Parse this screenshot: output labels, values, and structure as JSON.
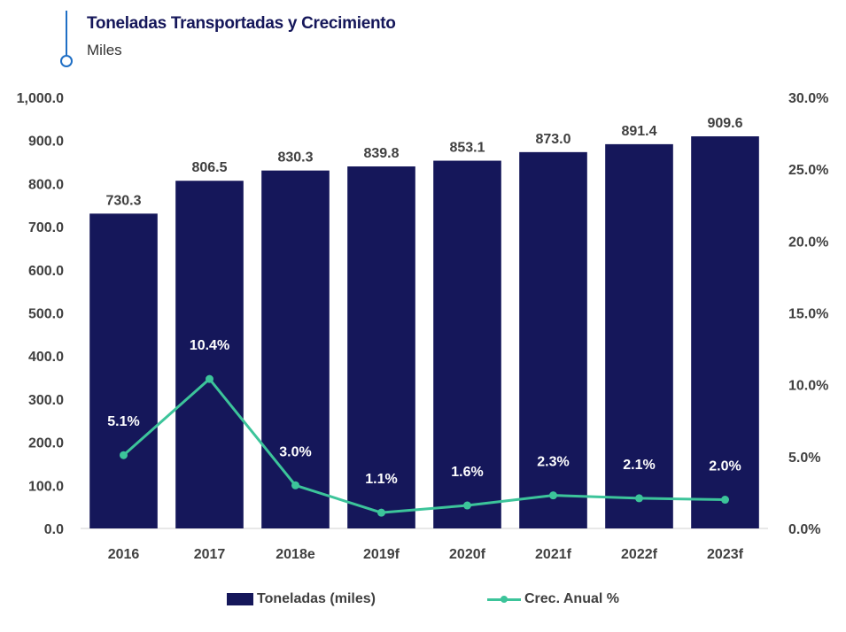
{
  "header": {
    "title": "Toneladas Transportadas y Crecimiento",
    "subtitle": "Miles"
  },
  "colors": {
    "bar": "#15175a",
    "line": "#3cc49a",
    "accent": "#1f6fc5"
  },
  "chart_data": {
    "type": "bar",
    "title": "Toneladas Transportadas y Crecimiento",
    "subtitle": "Miles",
    "categories": [
      "2016",
      "2017",
      "2018e",
      "2019f",
      "2020f",
      "2021f",
      "2022f",
      "2023f"
    ],
    "series": [
      {
        "name": "Toneladas (miles)",
        "type": "bar",
        "axis": "left",
        "values": [
          730.3,
          806.5,
          830.3,
          839.8,
          853.1,
          873.0,
          891.4,
          909.6
        ],
        "labels": [
          "730.3",
          "806.5",
          "830.3",
          "839.8",
          "853.1",
          "873.0",
          "891.4",
          "909.6"
        ]
      },
      {
        "name": "Crec. Anual %",
        "type": "line",
        "axis": "right",
        "values": [
          5.1,
          10.4,
          3.0,
          1.1,
          1.6,
          2.3,
          2.1,
          2.0
        ],
        "labels": [
          "5.1%",
          "10.4%",
          "3.0%",
          "1.1%",
          "1.6%",
          "2.3%",
          "2.1%",
          "2.0%"
        ]
      }
    ],
    "y_left": {
      "range": [
        0,
        1000
      ],
      "ticks": [
        0,
        100,
        200,
        300,
        400,
        500,
        600,
        700,
        800,
        900,
        1000
      ],
      "tick_labels": [
        "0.0",
        "100.0",
        "200.0",
        "300.0",
        "400.0",
        "500.0",
        "600.0",
        "700.0",
        "800.0",
        "900.0",
        "1,000.0"
      ]
    },
    "y_right": {
      "range": [
        0,
        30
      ],
      "ticks": [
        0,
        5,
        10,
        15,
        20,
        25,
        30
      ],
      "tick_labels": [
        "0.0%",
        "5.0%",
        "10.0%",
        "15.0%",
        "20.0%",
        "25.0%",
        "30.0%"
      ]
    },
    "grid": false,
    "legend": {
      "position": "bottom",
      "entries": [
        "Toneladas (miles)",
        "Crec. Anual %"
      ]
    }
  }
}
